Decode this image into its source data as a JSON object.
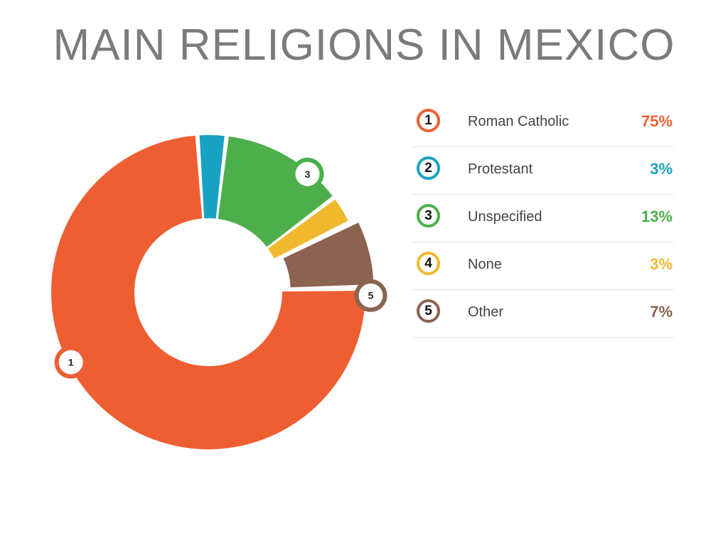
{
  "title": "MAIN RELIGIONS IN MEXICO",
  "chart_data": {
    "type": "pie",
    "variant": "donut",
    "title": "MAIN RELIGIONS IN MEXICO",
    "legend_position": "right",
    "slices": [
      {
        "number": "1",
        "label": "Roman Catholic",
        "value": 75,
        "display": "75%",
        "color": "#ee5e33"
      },
      {
        "number": "2",
        "label": "Protestant",
        "value": 3,
        "display": "3%",
        "color": "#1aa2c2"
      },
      {
        "number": "3",
        "label": "Unspecified",
        "value": 13,
        "display": "13%",
        "color": "#4caf4b"
      },
      {
        "number": "4",
        "label": "None",
        "value": 3,
        "display": "3%",
        "color": "#f0b92e"
      },
      {
        "number": "5",
        "label": "Other",
        "value": 7,
        "display": "7%",
        "color": "#8b6350"
      }
    ],
    "callouts": [
      "3",
      "5",
      "1"
    ]
  }
}
